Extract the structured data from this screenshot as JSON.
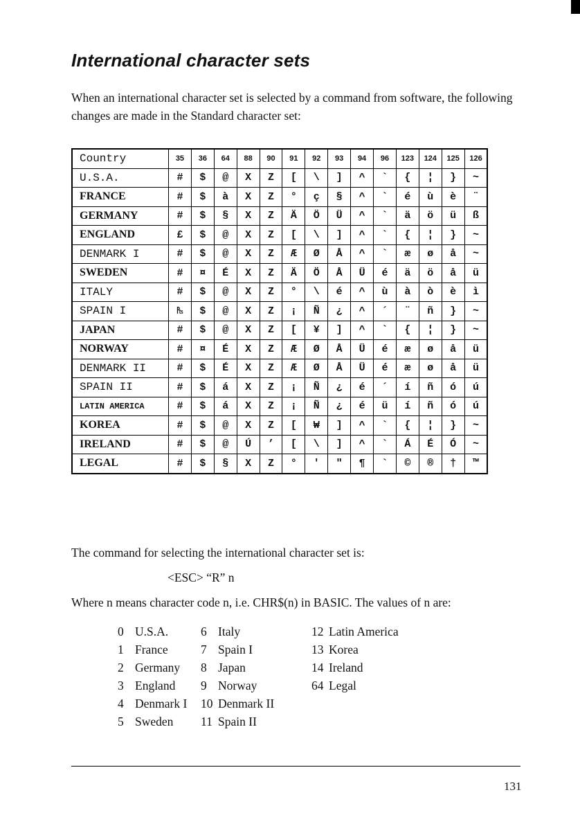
{
  "title": "International character sets",
  "intro": "When an international character set is selected by a command from software, the following changes are made in the Standard character set:",
  "table": {
    "header": [
      "Country",
      "35",
      "36",
      "64",
      "88",
      "90",
      "91",
      "92",
      "93",
      "94",
      "96",
      "123",
      "124",
      "125",
      "126"
    ],
    "rows": [
      [
        "U.S.A.",
        "#",
        "$",
        "@",
        "X",
        "Z",
        "[",
        "\\",
        "]",
        "^",
        "`",
        "{",
        "¦",
        "}",
        "~"
      ],
      [
        "FRANCE",
        "#",
        "$",
        "à",
        "X",
        "Z",
        "°",
        "ç",
        "§",
        "^",
        "`",
        "é",
        "ù",
        "è",
        "¨"
      ],
      [
        "GERMANY",
        "#",
        "$",
        "§",
        "X",
        "Z",
        "Ä",
        "Ö",
        "Ü",
        "^",
        "`",
        "ä",
        "ö",
        "ü",
        "ß"
      ],
      [
        "ENGLAND",
        "£",
        "$",
        "@",
        "X",
        "Z",
        "[",
        "\\",
        "]",
        "^",
        "`",
        "{",
        "¦",
        "}",
        "~"
      ],
      [
        "DENMARK I",
        "#",
        "$",
        "@",
        "X",
        "Z",
        "Æ",
        "Ø",
        "Å",
        "^",
        "`",
        "æ",
        "ø",
        "å",
        "~"
      ],
      [
        "SWEDEN",
        "#",
        "¤",
        "É",
        "X",
        "Z",
        "Ä",
        "Ö",
        "Å",
        "Ü",
        "é",
        "ä",
        "ö",
        "å",
        "ü"
      ],
      [
        "ITALY",
        "#",
        "$",
        "@",
        "X",
        "Z",
        "°",
        "\\",
        "é",
        "^",
        "ù",
        "à",
        "ò",
        "è",
        "ì"
      ],
      [
        "SPAIN I",
        "₧",
        "$",
        "@",
        "X",
        "Z",
        "¡",
        "Ñ",
        "¿",
        "^",
        "´",
        "¨",
        "ñ",
        "}",
        "~"
      ],
      [
        "JAPAN",
        "#",
        "$",
        "@",
        "X",
        "Z",
        "[",
        "¥",
        "]",
        "^",
        "`",
        "{",
        "¦",
        "}",
        "~"
      ],
      [
        "NORWAY",
        "#",
        "¤",
        "É",
        "X",
        "Z",
        "Æ",
        "Ø",
        "Å",
        "Ü",
        "é",
        "æ",
        "ø",
        "å",
        "ü"
      ],
      [
        "DENMARK II",
        "#",
        "$",
        "É",
        "X",
        "Z",
        "Æ",
        "Ø",
        "Å",
        "Ü",
        "é",
        "æ",
        "ø",
        "å",
        "ü"
      ],
      [
        "SPAIN II",
        "#",
        "$",
        "á",
        "X",
        "Z",
        "¡",
        "Ñ",
        "¿",
        "é",
        "´",
        "í",
        "ñ",
        "ó",
        "ú"
      ],
      [
        "LATIN AMERICA",
        "#",
        "$",
        "á",
        "X",
        "Z",
        "¡",
        "Ñ",
        "¿",
        "é",
        "ü",
        "í",
        "ñ",
        "ó",
        "ú"
      ],
      [
        "KOREA",
        "#",
        "$",
        "@",
        "X",
        "Z",
        "[",
        "₩",
        "]",
        "^",
        "`",
        "{",
        "¦",
        "}",
        "~"
      ],
      [
        "IRELAND",
        "#",
        "$",
        "@",
        "Ú",
        "’",
        "[",
        "\\",
        "]",
        "^",
        "`",
        "Á",
        "É",
        "Ó",
        "~"
      ],
      [
        "LEGAL",
        "#",
        "$",
        "§",
        "X",
        "Z",
        "°",
        "′",
        "″",
        "¶",
        "`",
        "©",
        "®",
        "†",
        "™"
      ]
    ]
  },
  "command_intro": "The command for selecting the international character set is:",
  "command": "<ESC> “R” n",
  "where": "Where n means character code n, i.e. CHR$(n) in BASIC. The values of n are:",
  "values": [
    [
      [
        "0",
        "U.S.A."
      ],
      [
        "1",
        "France"
      ],
      [
        "2",
        "Germany"
      ],
      [
        "3",
        "England"
      ],
      [
        "4",
        "Denmark I"
      ],
      [
        "5",
        "Sweden"
      ]
    ],
    [
      [
        "6",
        "Italy"
      ],
      [
        "7",
        "Spain I"
      ],
      [
        "8",
        "Japan"
      ],
      [
        "9",
        "Norway"
      ],
      [
        "10",
        "Denmark II"
      ],
      [
        "11",
        "Spain II"
      ]
    ],
    [
      [
        "12",
        "Latin America"
      ],
      [
        "13",
        "Korea"
      ],
      [
        "14",
        "Ireland"
      ],
      [
        "64",
        "Legal"
      ]
    ]
  ],
  "page_number": "131"
}
